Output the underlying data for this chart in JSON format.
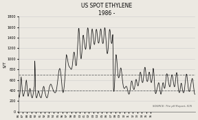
{
  "title": "US SPOT ETHYLENE",
  "subtitle": "1986 -",
  "ylabel": "$/T",
  "source_text": "SOURCE: The pH Report, ICIS",
  "ylim": [
    0,
    1800
  ],
  "yticks": [
    0,
    200,
    400,
    600,
    800,
    1000,
    1200,
    1400,
    1600,
    1800
  ],
  "hline1": 400,
  "hline2": 700,
  "background_color": "#ece9e2",
  "line_color": "#111111",
  "hline_color": "#666666",
  "grid_color": "#cccccc",
  "years": [
    "86",
    "87",
    "88",
    "89",
    "90",
    "91",
    "92",
    "93",
    "94",
    "95",
    "96",
    "97",
    "98",
    "99",
    "00",
    "01",
    "02",
    "03",
    "04",
    "05",
    "06",
    "07",
    "08",
    "09",
    "10",
    "11",
    "12",
    "13",
    "14",
    "15",
    "16"
  ],
  "values": [
    340,
    310,
    290,
    270,
    310,
    380,
    500,
    600,
    660,
    580,
    480,
    400,
    350,
    300,
    290,
    310,
    340,
    370,
    400,
    440,
    500,
    560,
    600,
    560,
    480,
    380,
    310,
    290,
    310,
    350,
    390,
    430,
    440,
    420,
    380,
    320,
    290,
    270,
    260,
    280,
    310,
    350,
    400,
    450,
    480,
    960,
    800,
    380,
    300,
    270,
    260,
    280,
    310,
    340,
    370,
    390,
    380,
    350,
    320,
    290,
    280,
    270,
    260,
    280,
    310,
    350,
    390,
    430,
    460,
    480,
    470,
    440,
    400,
    360,
    330,
    300,
    280,
    270,
    260,
    270,
    290,
    320,
    360,
    400,
    440,
    470,
    490,
    510,
    520,
    520,
    510,
    490,
    470,
    450,
    430,
    410,
    390,
    380,
    370,
    360,
    360,
    360,
    370,
    390,
    420,
    460,
    510,
    570,
    630,
    700,
    750,
    790,
    810,
    820,
    800,
    760,
    710,
    640,
    560,
    480,
    420,
    380,
    360,
    380,
    420,
    480,
    560,
    650,
    760,
    880,
    1010,
    1080,
    1060,
    1030,
    990,
    950,
    910,
    880,
    860,
    850,
    840,
    830,
    820,
    810,
    800,
    810,
    830,
    870,
    930,
    1000,
    1070,
    1120,
    1130,
    1100,
    1040,
    960,
    900,
    870,
    880,
    940,
    1040,
    1170,
    1310,
    1450,
    1570,
    1580,
    1490,
    1360,
    1220,
    1100,
    1020,
    1000,
    1040,
    1120,
    1230,
    1360,
    1440,
    1450,
    1410,
    1360,
    1300,
    1250,
    1200,
    1180,
    1200,
    1260,
    1360,
    1470,
    1560,
    1590,
    1570,
    1500,
    1400,
    1300,
    1220,
    1180,
    1200,
    1260,
    1350,
    1450,
    1540,
    1570,
    1550,
    1490,
    1410,
    1340,
    1290,
    1270,
    1290,
    1350,
    1430,
    1510,
    1560,
    1560,
    1520,
    1450,
    1380,
    1330,
    1300,
    1300,
    1330,
    1390,
    1460,
    1530,
    1570,
    1560,
    1510,
    1430,
    1360,
    1310,
    1290,
    1300,
    1350,
    1430,
    1530,
    1590,
    1580,
    1520,
    1420,
    1300,
    1200,
    1130,
    1100,
    1110,
    1160,
    1250,
    1360,
    1470,
    1550,
    1560,
    1520,
    1440,
    1360,
    1310,
    1290,
    1310,
    1370,
    1460,
    1050,
    430,
    380,
    430,
    540,
    700,
    870,
    1010,
    1080,
    1060,
    990,
    890,
    790,
    710,
    660,
    640,
    650,
    680,
    730,
    780,
    820,
    830,
    810,
    760,
    690,
    620,
    560,
    510,
    470,
    450,
    440,
    440,
    450,
    460,
    470,
    480,
    480,
    470,
    450,
    420,
    390,
    360,
    340,
    330,
    340,
    360,
    400,
    450,
    500,
    550,
    580,
    580,
    550,
    510,
    470,
    440,
    420,
    420,
    440,
    480,
    530,
    580,
    610,
    610,
    580,
    540,
    510,
    490,
    490,
    510,
    560,
    620,
    680,
    730,
    750,
    740,
    700,
    640,
    590,
    560,
    550,
    560,
    600,
    660,
    730,
    800,
    840,
    840,
    800,
    730,
    660,
    610,
    580,
    570,
    580,
    620,
    670,
    720,
    750,
    740,
    700,
    640,
    590,
    560,
    550,
    570,
    620,
    690,
    770,
    820,
    800,
    720,
    600,
    480,
    390,
    350,
    340,
    360,
    390,
    420,
    450,
    480,
    510,
    540,
    550,
    530,
    480,
    420,
    370,
    340,
    330,
    350,
    390,
    450,
    500,
    540,
    550,
    530,
    480,
    450,
    440,
    460,
    510,
    580,
    650,
    700,
    720,
    710,
    680,
    640,
    590,
    540,
    510,
    480,
    470,
    480,
    520,
    580,
    640,
    680,
    700,
    690,
    650,
    600,
    550,
    510,
    480,
    470,
    490,
    540,
    610,
    680,
    730,
    740,
    700,
    630,
    540,
    460,
    400,
    370,
    360,
    370,
    410,
    460,
    510,
    540,
    530,
    490,
    440,
    400,
    370,
    360,
    360,
    380,
    420,
    480,
    550,
    620,
    680,
    710,
    710,
    670,
    610,
    540,
    470,
    420,
    390,
    380,
    390,
    420,
    460,
    500,
    540,
    580,
    610,
    630,
    620,
    580,
    520,
    450,
    390,
    350,
    330,
    330
  ]
}
